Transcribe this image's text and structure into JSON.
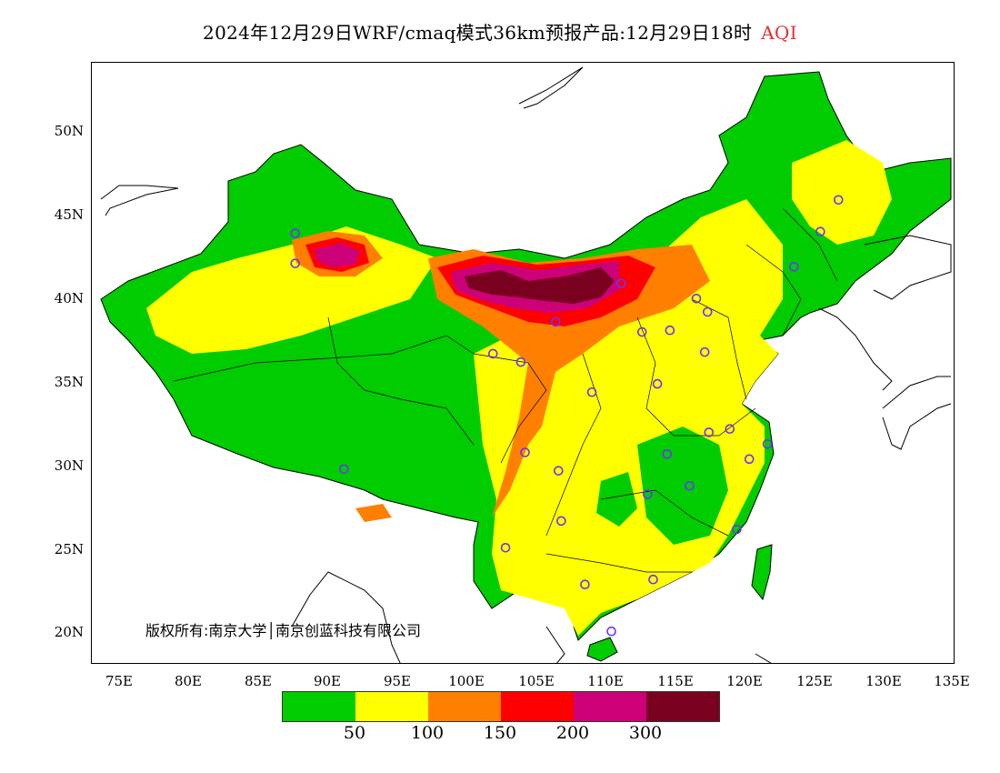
{
  "title": {
    "main": "2024年12月29日WRF/cmaq模式36km预报产品:12月29日18时",
    "variable": "AQI"
  },
  "lat_labels": [
    "50N",
    "45N",
    "40N",
    "35N",
    "30N",
    "25N",
    "20N"
  ],
  "lon_labels": [
    "75E",
    "80E",
    "85E",
    "90E",
    "95E",
    "100E",
    "105E",
    "110E",
    "115E",
    "120E",
    "125E",
    "130E",
    "135E"
  ],
  "copyright": "版权所有:南京大学│南京创蓝科技有限公司",
  "legend": {
    "colors": [
      "#00cc00",
      "#ffff00",
      "#ff8000",
      "#ff0000",
      "#cc0077",
      "#7a0020"
    ],
    "labels": [
      "50",
      "100",
      "150",
      "200",
      "300"
    ]
  },
  "map": {
    "lon_range": [
      73,
      135
    ],
    "lat_range": [
      18,
      54
    ],
    "station_color": "#7030ff"
  }
}
